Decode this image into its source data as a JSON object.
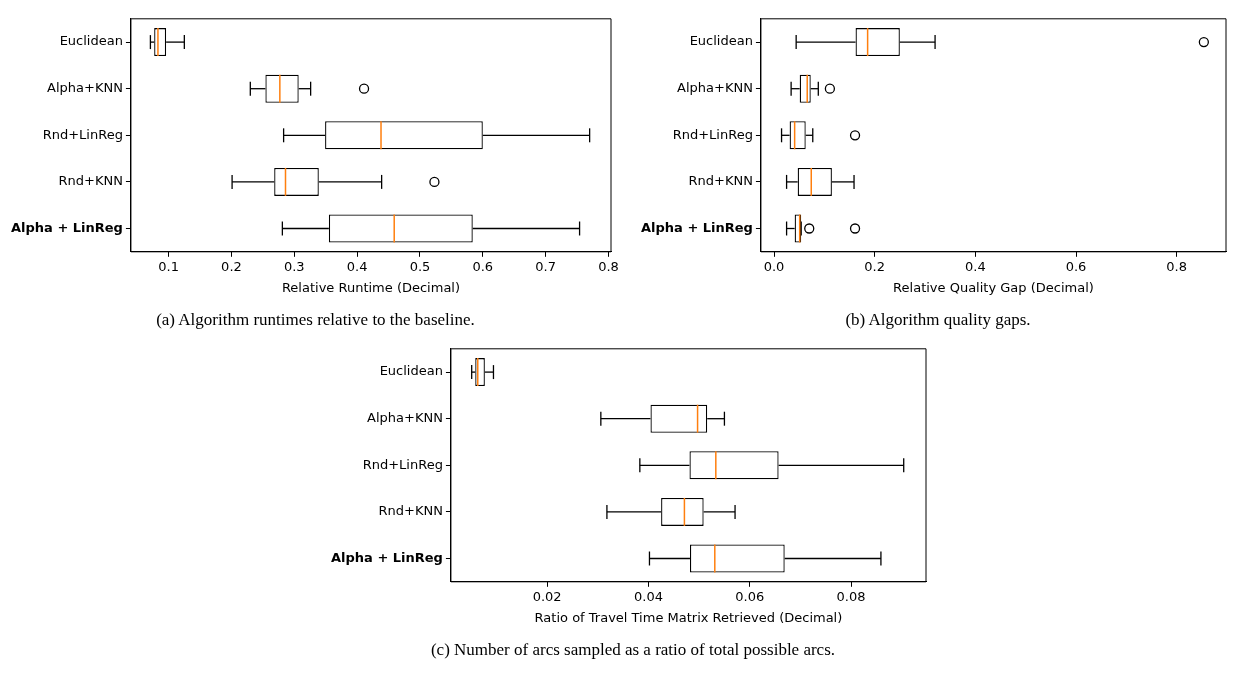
{
  "chart_data": [
    {
      "type": "box",
      "orientation": "horizontal",
      "xlabel": "Relative Runtime (Decimal)",
      "categories": [
        "Euclidean",
        "Alpha+KNN",
        "Rnd+LinReg",
        "Rnd+KNN",
        "Alpha + LinReg"
      ],
      "boxes": [
        {
          "low": 0.071,
          "q1": 0.077,
          "median": 0.083,
          "q3": 0.096,
          "high": 0.125
        },
        {
          "low": 0.23,
          "q1": 0.254,
          "median": 0.277,
          "q3": 0.307,
          "high": 0.326,
          "outliers": [
            0.411
          ]
        },
        {
          "low": 0.283,
          "q1": 0.349,
          "median": 0.438,
          "q3": 0.6,
          "high": 0.77
        },
        {
          "low": 0.201,
          "q1": 0.268,
          "median": 0.286,
          "q3": 0.339,
          "high": 0.439,
          "outliers": [
            0.523
          ]
        },
        {
          "low": 0.281,
          "q1": 0.355,
          "median": 0.459,
          "q3": 0.584,
          "high": 0.754
        }
      ],
      "xlim": [
        0.04,
        0.804
      ],
      "xticks": [
        0.1,
        0.2,
        0.3,
        0.4,
        0.5,
        0.6,
        0.7,
        0.8
      ],
      "grid": false,
      "annotations": [
        "(a) Algorithm runtimes relative to the baseline."
      ]
    },
    {
      "type": "box",
      "orientation": "horizontal",
      "xlabel": "Relative Quality Gap (Decimal)",
      "categories": [
        "Euclidean",
        "Alpha+KNN",
        "Rnd+LinReg",
        "Rnd+KNN",
        "Alpha + LinReg"
      ],
      "boxes": [
        {
          "low": 0.044,
          "q1": 0.162,
          "median": 0.186,
          "q3": 0.25,
          "high": 0.32,
          "outliers": [
            0.854
          ]
        },
        {
          "low": 0.034,
          "q1": 0.051,
          "median": 0.066,
          "q3": 0.073,
          "high": 0.088,
          "outliers": [
            0.111
          ]
        },
        {
          "low": 0.015,
          "q1": 0.031,
          "median": 0.041,
          "q3": 0.063,
          "high": 0.077,
          "outliers": [
            0.161
          ]
        },
        {
          "low": 0.025,
          "q1": 0.047,
          "median": 0.074,
          "q3": 0.115,
          "high": 0.159
        },
        {
          "low": 0.025,
          "q1": 0.041,
          "median": 0.051,
          "q3": 0.054,
          "high": 0.054,
          "outliers": [
            0.07,
            0.161
          ]
        }
      ],
      "xlim": [
        -0.026,
        0.898
      ],
      "xticks": [
        {
          "value": 0,
          "label": "0.0"
        },
        0.2,
        0.4,
        0.6,
        0.8
      ],
      "grid": false,
      "annotations": [
        "(b) Algorithm quality gaps."
      ]
    },
    {
      "type": "box",
      "orientation": "horizontal",
      "xlabel": "Ratio of Travel Time Matrix Retrieved (Decimal)",
      "categories": [
        "Euclidean",
        "Alpha+KNN",
        "Rnd+LinReg",
        "Rnd+KNN",
        "Alpha + LinReg"
      ],
      "boxes": [
        {
          "low": 0.0051,
          "q1": 0.0058,
          "median": 0.0063,
          "q3": 0.0077,
          "high": 0.0094
        },
        {
          "low": 0.0306,
          "q1": 0.0404,
          "median": 0.0497,
          "q3": 0.0516,
          "high": 0.055
        },
        {
          "low": 0.0383,
          "q1": 0.0481,
          "median": 0.0533,
          "q3": 0.0657,
          "high": 0.0904
        },
        {
          "low": 0.0318,
          "q1": 0.0425,
          "median": 0.0471,
          "q3": 0.0509,
          "high": 0.0571
        },
        {
          "low": 0.0402,
          "q1": 0.0482,
          "median": 0.0531,
          "q3": 0.0669,
          "high": 0.0859
        }
      ],
      "xlim": [
        0.001,
        0.0948
      ],
      "xticks": [
        0.02,
        0.04,
        0.06,
        0.08
      ],
      "grid": false,
      "annotations": [
        "(c) Number of arcs sampled as a ratio of total possible arcs."
      ]
    }
  ]
}
